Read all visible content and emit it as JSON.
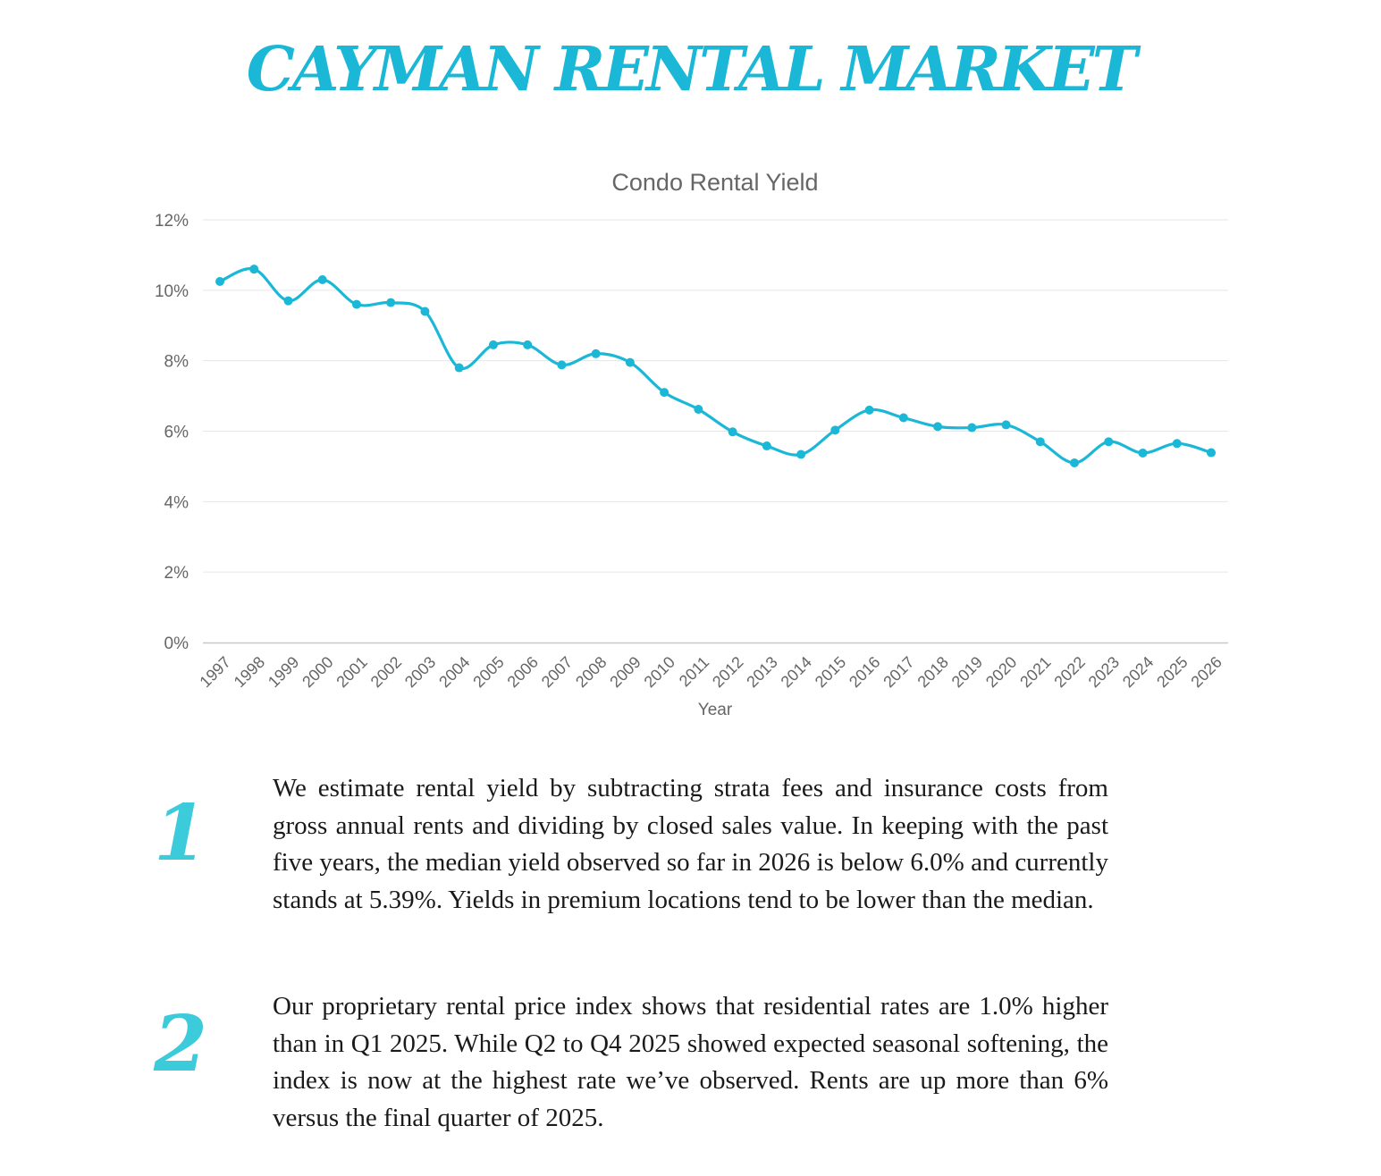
{
  "colors": {
    "accent": "#1ab8d6",
    "number_accent": "#3ccbdb",
    "axis_text": "#666666",
    "grid": "#e6e6e6"
  },
  "header": {
    "title": "CAYMAN RENTAL MARKET"
  },
  "chart_data": {
    "type": "line",
    "title": "Condo Rental Yield",
    "xlabel": "Year",
    "ylabel": "",
    "ylim": [
      0,
      12
    ],
    "y_tick_values": [
      0,
      2,
      4,
      6,
      8,
      10,
      12
    ],
    "y_tick_labels": [
      "0%",
      "2%",
      "4%",
      "6%",
      "8%",
      "10%",
      "12%"
    ],
    "grid": true,
    "legend": "none",
    "categories": [
      "1997",
      "1998",
      "1999",
      "2000",
      "2001",
      "2002",
      "2003",
      "2004",
      "2005",
      "2006",
      "2007",
      "2008",
      "2009",
      "2010",
      "2011",
      "2012",
      "2013",
      "2014",
      "2015",
      "2016",
      "2017",
      "2018",
      "2019",
      "2020",
      "2021",
      "2022",
      "2023",
      "2024",
      "2025",
      "2026"
    ],
    "series": [
      {
        "values": [
          10.25,
          10.6,
          9.7,
          10.3,
          9.6,
          9.65,
          9.4,
          7.8,
          8.45,
          8.45,
          7.88,
          8.2,
          7.95,
          7.1,
          6.62,
          5.98,
          5.58,
          5.34,
          6.03,
          6.6,
          6.38,
          6.13,
          6.1,
          6.18,
          5.7,
          5.1,
          5.7,
          5.38,
          5.65,
          5.39
        ]
      }
    ]
  },
  "notes": [
    {
      "number": "1",
      "text": "We estimate rental yield by subtracting strata fees and insurance costs from gross annual rents and dividing by closed sales value. In keeping with the past five years, the median yield observed so far in 2026 is below 6.0% and currently stands at 5.39%. Yields in premium locations tend to be lower than the median."
    },
    {
      "number": "2",
      "text": "Our proprietary rental price index shows that residential rates are 1.0% higher than in Q1 2025. While Q2 to Q4 2025 showed expected seasonal softening, the index is now at the highest rate we’ve observed. Rents are up more than 6% versus the final quarter of 2025."
    }
  ]
}
